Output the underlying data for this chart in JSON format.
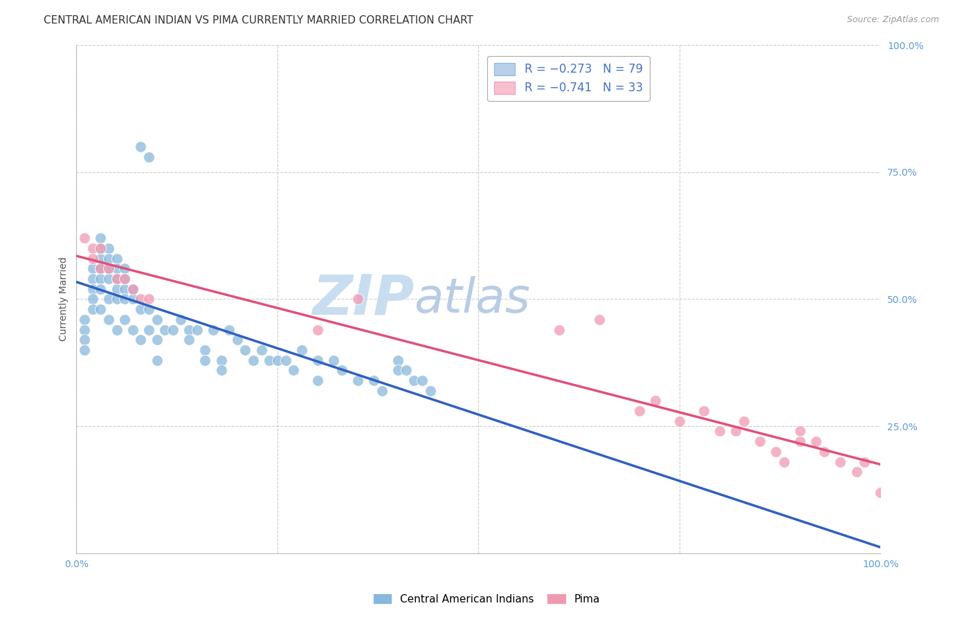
{
  "title": "CENTRAL AMERICAN INDIAN VS PIMA CURRENTLY MARRIED CORRELATION CHART",
  "source": "Source: ZipAtlas.com",
  "ylabel": "Currently Married",
  "xlabel": "",
  "xlim": [
    0,
    100
  ],
  "ylim": [
    0,
    100
  ],
  "xticks": [
    0,
    25,
    50,
    75,
    100
  ],
  "yticks": [
    0,
    25,
    50,
    75,
    100
  ],
  "xtick_labels": [
    "0.0%",
    "",
    "",
    "",
    "100.0%"
  ],
  "ytick_labels": [
    "",
    "25.0%",
    "50.0%",
    "75.0%",
    "100.0%"
  ],
  "watermark_zip": "ZIP",
  "watermark_atlas": "atlas",
  "series1_name": "Central American Indians",
  "series2_name": "Pima",
  "series1_color": "#88b8dc",
  "series2_color": "#f09ab0",
  "series1_edge": "white",
  "series2_edge": "white",
  "line1_color": "#3060c0",
  "line2_color": "#e0507a",
  "line_dash_color": "#a0c8e8",
  "title_fontsize": 11,
  "source_fontsize": 9,
  "axis_label_fontsize": 10,
  "tick_fontsize": 10,
  "legend_fontsize": 12,
  "background_color": "#ffffff",
  "grid_color": "#cccccc",
  "watermark_zip_color": "#c8ddf0",
  "watermark_atlas_color": "#b8cce4",
  "watermark_fontsize": 58,
  "blue_x": [
    1,
    1,
    1,
    1,
    2,
    2,
    2,
    2,
    2,
    3,
    3,
    3,
    3,
    3,
    3,
    3,
    4,
    4,
    4,
    4,
    4,
    4,
    5,
    5,
    5,
    5,
    5,
    5,
    6,
    6,
    6,
    6,
    6,
    7,
    7,
    7,
    8,
    8,
    9,
    9,
    10,
    10,
    10,
    11,
    12,
    13,
    14,
    14,
    15,
    16,
    16,
    17,
    18,
    18,
    19,
    20,
    21,
    22,
    23,
    24,
    25,
    26,
    27,
    28,
    30,
    30,
    32,
    33,
    35,
    37,
    38,
    40,
    40,
    41,
    42,
    43,
    44,
    8,
    9
  ],
  "blue_y": [
    46,
    44,
    42,
    40,
    56,
    54,
    52,
    50,
    48,
    62,
    60,
    58,
    56,
    54,
    52,
    48,
    60,
    58,
    56,
    54,
    50,
    46,
    58,
    56,
    54,
    52,
    50,
    44,
    56,
    54,
    52,
    50,
    46,
    52,
    50,
    44,
    48,
    42,
    48,
    44,
    46,
    42,
    38,
    44,
    44,
    46,
    44,
    42,
    44,
    40,
    38,
    44,
    38,
    36,
    44,
    42,
    40,
    38,
    40,
    38,
    38,
    38,
    36,
    40,
    38,
    34,
    38,
    36,
    34,
    34,
    32,
    38,
    36,
    36,
    34,
    34,
    32,
    80,
    78
  ],
  "pink_x": [
    1,
    2,
    2,
    3,
    3,
    4,
    5,
    6,
    7,
    8,
    9,
    30,
    35,
    60,
    65,
    70,
    72,
    75,
    78,
    80,
    82,
    83,
    85,
    87,
    88,
    90,
    90,
    92,
    93,
    95,
    97,
    98,
    100
  ],
  "pink_y": [
    62,
    60,
    58,
    60,
    56,
    56,
    54,
    54,
    52,
    50,
    50,
    44,
    50,
    44,
    46,
    28,
    30,
    26,
    28,
    24,
    24,
    26,
    22,
    20,
    18,
    22,
    24,
    22,
    20,
    18,
    16,
    18,
    12
  ]
}
